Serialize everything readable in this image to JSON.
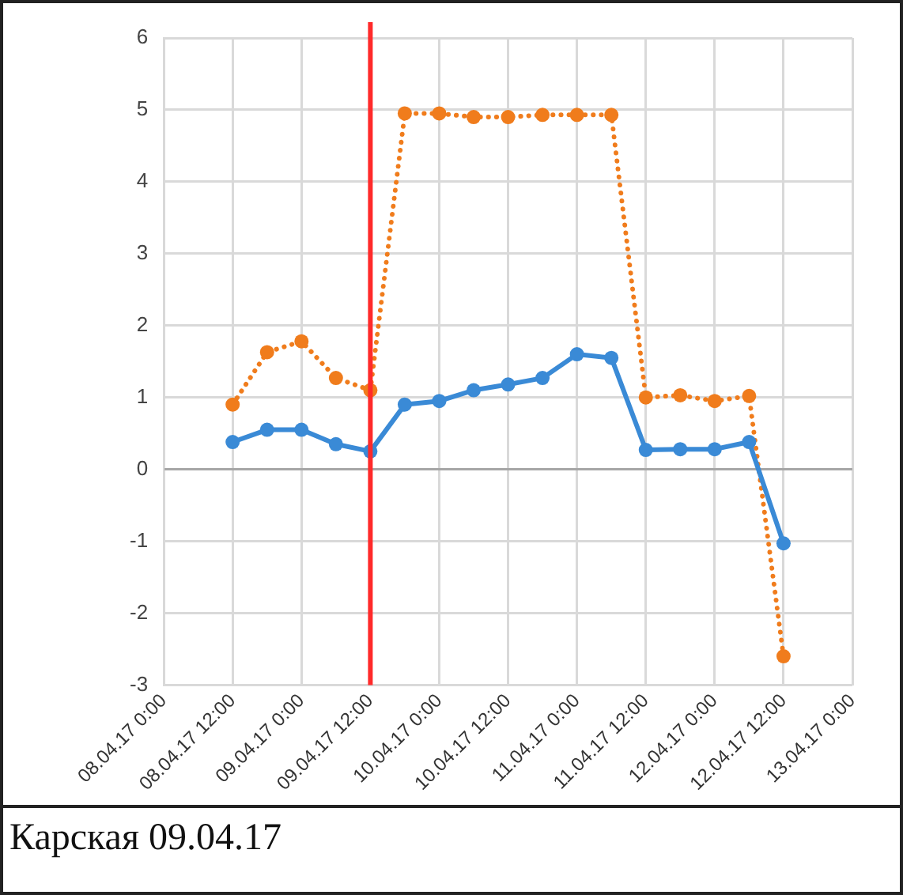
{
  "chart_data": {
    "type": "line",
    "x": [
      "--04-08T12:00",
      "--04-08T18:00",
      "--04-09T00:00",
      "--04-09T06:00",
      "--04-09T12:00",
      "--04-09T18:00",
      "--04-10T00:00",
      "--04-10T06:00",
      "--04-10T12:00",
      "--04-10T18:00",
      "--04-11T00:00",
      "--04-11T06:00",
      "--04-11T12:00",
      "--04-11T18:00",
      "--04-12T00:00",
      "--04-12T06:00",
      "--04-12T12:00"
    ],
    "series": [
      {
        "color": "#3a8ad6",
        "line_style": "solid",
        "values": [
          0.38,
          0.55,
          0.55,
          0.35,
          0.25,
          0.9,
          0.95,
          1.1,
          1.18,
          1.27,
          1.6,
          1.55,
          0.27,
          0.28,
          0.28,
          0.38,
          -1.03
        ]
      },
      {
        "color": "#f07c1c",
        "line_style": "dotted",
        "values": [
          0.9,
          1.63,
          1.78,
          1.27,
          1.1,
          4.95,
          4.95,
          4.9,
          4.9,
          4.93,
          4.93,
          4.93,
          1.0,
          1.03,
          0.95,
          1.02,
          -2.6
        ]
      }
    ],
    "marker": "circle",
    "grid": true,
    "legend": false,
    "ylim": [
      -3,
      6
    ],
    "yticks": [
      -3,
      -2,
      -1,
      0,
      1,
      2,
      3,
      4,
      5,
      6
    ],
    "xlim": [
      "--04-08T00:00",
      "--04-13T00:00"
    ],
    "xticks": [
      {
        "value": "--04-08T00:00",
        "label": "08.04.17 0:00"
      },
      {
        "value": "--04-08T12:00",
        "label": "08.04.17 12:00"
      },
      {
        "value": "--04-09T00:00",
        "label": "09.04.17 0:00"
      },
      {
        "value": "--04-09T12:00",
        "label": "09.04.17 12:00"
      },
      {
        "value": "--04-10T00:00",
        "label": "10.04.17 0:00"
      },
      {
        "value": "--04-10T12:00",
        "label": "10.04.17 12:00"
      },
      {
        "value": "--04-11T00:00",
        "label": "11.04.17 0:00"
      },
      {
        "value": "--04-11T12:00",
        "label": "11.04.17 12:00"
      },
      {
        "value": "--04-12T00:00",
        "label": "12.04.17 0:00"
      },
      {
        "value": "--04-12T12:00",
        "label": "12.04.17 12:00"
      },
      {
        "value": "--04-13T00:00",
        "label": "13.04.17 0:00"
      }
    ],
    "ref_lines": [
      {
        "axis": "x",
        "value": "--04-09T12:00",
        "color": "#ff2a2a",
        "line_style": "solid"
      }
    ],
    "annotations": [
      "Карская 09.04.17"
    ]
  }
}
